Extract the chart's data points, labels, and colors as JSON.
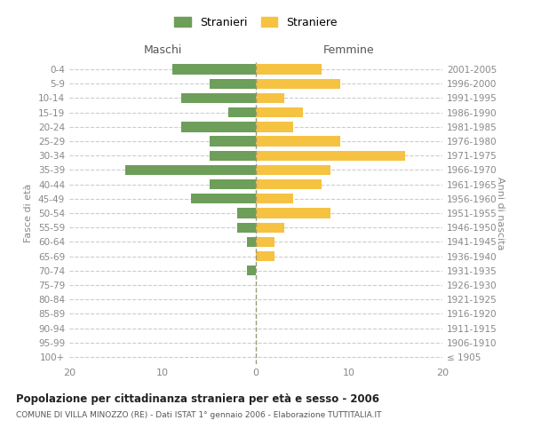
{
  "age_groups": [
    "100+",
    "95-99",
    "90-94",
    "85-89",
    "80-84",
    "75-79",
    "70-74",
    "65-69",
    "60-64",
    "55-59",
    "50-54",
    "45-49",
    "40-44",
    "35-39",
    "30-34",
    "25-29",
    "20-24",
    "15-19",
    "10-14",
    "5-9",
    "0-4"
  ],
  "birth_years": [
    "≤ 1905",
    "1906-1910",
    "1911-1915",
    "1916-1920",
    "1921-1925",
    "1926-1930",
    "1931-1935",
    "1936-1940",
    "1941-1945",
    "1946-1950",
    "1951-1955",
    "1956-1960",
    "1961-1965",
    "1966-1970",
    "1971-1975",
    "1976-1980",
    "1981-1985",
    "1986-1990",
    "1991-1995",
    "1996-2000",
    "2001-2005"
  ],
  "males": [
    0,
    0,
    0,
    0,
    0,
    0,
    1,
    0,
    1,
    2,
    2,
    7,
    5,
    14,
    5,
    5,
    8,
    3,
    8,
    5,
    9
  ],
  "females": [
    0,
    0,
    0,
    0,
    0,
    0,
    0,
    2,
    2,
    3,
    8,
    4,
    7,
    8,
    16,
    9,
    4,
    5,
    3,
    9,
    7
  ],
  "male_color": "#6d9e5a",
  "female_color": "#f5c242",
  "title": "Popolazione per cittadinanza straniera per età e sesso - 2006",
  "subtitle": "COMUNE DI VILLA MINOZZO (RE) - Dati ISTAT 1° gennaio 2006 - Elaborazione TUTTITALIA.IT",
  "xlabel_left": "Maschi",
  "xlabel_right": "Femmine",
  "ylabel_left": "Fasce di età",
  "ylabel_right": "Anni di nascita",
  "xlim": 20,
  "legend_stranieri": "Stranieri",
  "legend_straniere": "Straniere",
  "background_color": "#ffffff",
  "grid_color": "#cccccc"
}
